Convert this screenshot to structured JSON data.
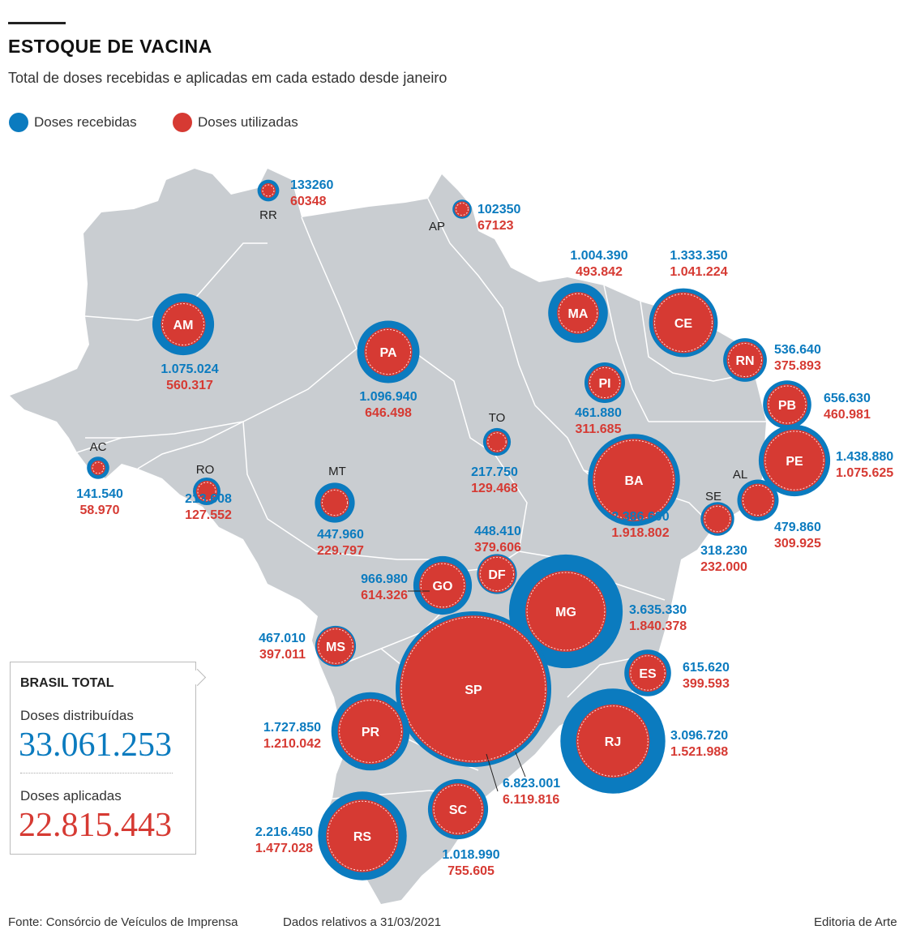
{
  "header": {
    "title": "ESTOQUE DE VACINA",
    "subtitle": "Total de doses recebidas e aplicadas em cada estado desde janeiro"
  },
  "legend": {
    "received_label": "Doses recebidas",
    "used_label": "Doses utilizadas"
  },
  "colors": {
    "received": "#0b7bbf",
    "used": "#d63a33",
    "land": "#c9cdd1",
    "borders": "#ffffff"
  },
  "total": {
    "heading": "BRASIL TOTAL",
    "distributed_label": "Doses distribuídas",
    "distributed_value": "33.061.253",
    "applied_label": "Doses aplicadas",
    "applied_value": "22.815.443"
  },
  "states": [
    {
      "code": "RR",
      "received": "133260",
      "used": "60348"
    },
    {
      "code": "AP",
      "received": "102350",
      "used": "67123"
    },
    {
      "code": "AM",
      "received": "1.075.024",
      "used": "560.317"
    },
    {
      "code": "PA",
      "received": "1.096.940",
      "used": "646.498"
    },
    {
      "code": "MA",
      "received": "1.004.390",
      "used": "493.842"
    },
    {
      "code": "CE",
      "received": "1.333.350",
      "used": "1.041.224"
    },
    {
      "code": "RN",
      "received": "536.640",
      "used": "375.893"
    },
    {
      "code": "PI",
      "received": "461.880",
      "used": "311.685"
    },
    {
      "code": "PB",
      "received": "656.630",
      "used": "460.981"
    },
    {
      "code": "PE",
      "received": "1.438.880",
      "used": "1.075.625"
    },
    {
      "code": "AL",
      "received": "479.860",
      "used": "309.925"
    },
    {
      "code": "SE",
      "received": "318.230",
      "used": "232.000"
    },
    {
      "code": "BA",
      "received": "2.386.600",
      "used": "1.918.802"
    },
    {
      "code": "TO",
      "received": "217.750",
      "used": "129.468"
    },
    {
      "code": "AC",
      "received": "141.540",
      "used": "58.970"
    },
    {
      "code": "RO",
      "received": "213.608",
      "used": "127.552"
    },
    {
      "code": "MT",
      "received": "447.960",
      "used": "229.797"
    },
    {
      "code": "DF",
      "received": "448.410",
      "used": "379.606"
    },
    {
      "code": "GO",
      "received": "966.980",
      "used": "614.326"
    },
    {
      "code": "MG",
      "received": "3.635.330",
      "used": "1.840.378"
    },
    {
      "code": "MS",
      "received": "467.010",
      "used": "397.011"
    },
    {
      "code": "ES",
      "received": "615.620",
      "used": "399.593"
    },
    {
      "code": "SP",
      "received": "6.823.001",
      "used": "6.119.816"
    },
    {
      "code": "RJ",
      "received": "3.096.720",
      "used": "1.521.988"
    },
    {
      "code": "PR",
      "received": "1.727.850",
      "used": "1.210.042"
    },
    {
      "code": "SC",
      "received": "1.018.990",
      "used": "755.605"
    },
    {
      "code": "RS",
      "received": "2.216.450",
      "used": "1.477.028"
    }
  ],
  "footer": {
    "source": "Fonte: Consórcio de Veículos de Imprensa",
    "date_note": "Dados relativos a 31/03/2021",
    "credit": "Editoria de Arte"
  }
}
